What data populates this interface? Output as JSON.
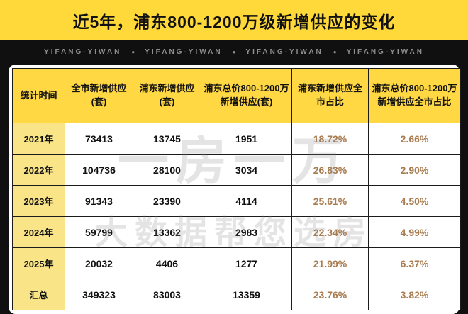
{
  "title": "近5年，浦东800-1200万级新增供应的变化",
  "brand": {
    "items": [
      "YIFANG-YIWAN",
      "YIFANG-YIWAN",
      "YIFANG-YIWAN",
      "YIFANG-YIWAN"
    ],
    "separator": "●"
  },
  "watermarks": [
    "一房一万",
    "大数据帮您选房"
  ],
  "colors": {
    "title_bg": "#ffd83a",
    "header_bg": "#ffd843",
    "time_col_bg": "#f9e588",
    "percent_text": "#a97c4f",
    "page_bg": "#101010"
  },
  "chart_data": {
    "type": "table",
    "title": "近5年，浦东800-1200万级新增供应的变化",
    "columns": [
      "统计时间",
      "全市新增供应(套)",
      "浦东新增供应(套)",
      "浦东总价800-1200万新增供应(套)",
      "浦东新增供应全市占比",
      "浦东总价800-1200万新增供应全市占比"
    ],
    "rows": [
      [
        "2021年",
        "73413",
        "13745",
        "1951",
        "18.72%",
        "2.66%"
      ],
      [
        "2022年",
        "104736",
        "28100",
        "3034",
        "26.83%",
        "2.90%"
      ],
      [
        "2023年",
        "91343",
        "23390",
        "4114",
        "25.61%",
        "4.50%"
      ],
      [
        "2024年",
        "59799",
        "13362",
        "2983",
        "22.34%",
        "4.99%"
      ],
      [
        "2025年",
        "20032",
        "4406",
        "1277",
        "21.99%",
        "6.37%"
      ],
      [
        "汇总",
        "349323",
        "83003",
        "13359",
        "23.76%",
        "3.82%"
      ]
    ]
  }
}
